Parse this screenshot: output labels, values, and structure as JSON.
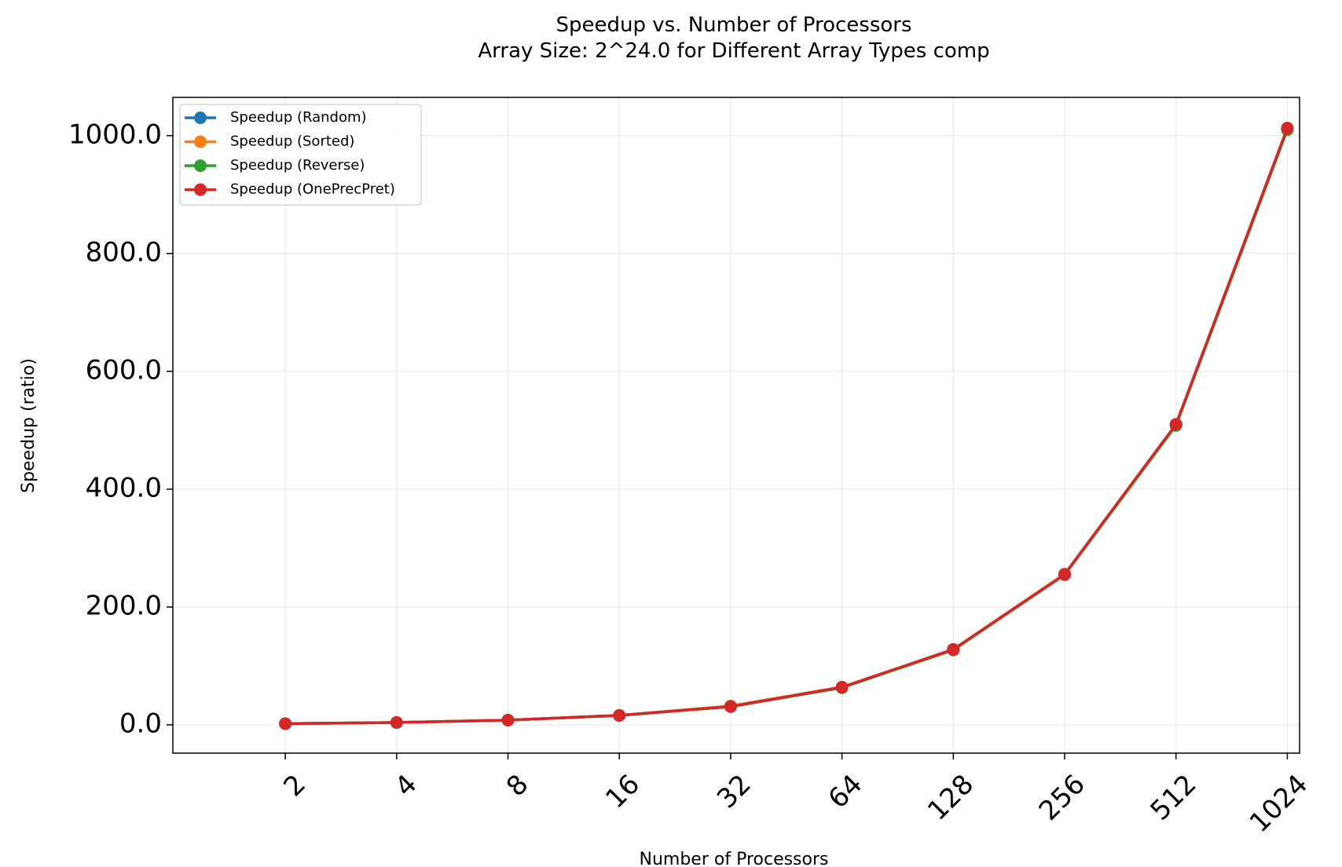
{
  "chart_data": {
    "type": "line",
    "title": "Speedup vs. Number of Processors",
    "subtitle": "Array Size: 2^24.0 for Different Array Types comp",
    "xlabel": "Number of Processors",
    "ylabel": "Speedup (ratio)",
    "x": [
      2,
      4,
      8,
      16,
      32,
      64,
      128,
      256,
      512,
      1024
    ],
    "x_tick_labels": [
      "2",
      "4",
      "8",
      "16",
      "32",
      "64",
      "128",
      "256",
      "512",
      "1024"
    ],
    "x_scale": "log2",
    "y_ticks": [
      0,
      200,
      400,
      600,
      800,
      1000
    ],
    "y_tick_labels": [
      "0.0",
      "200.0",
      "400.0",
      "600.0",
      "800.0",
      "1000.0"
    ],
    "ylim": [
      -48,
      1065
    ],
    "grid": true,
    "legend_position": "top-left",
    "series": [
      {
        "name": "Speedup (Random)",
        "color": "#1f77b4",
        "values": [
          2,
          4,
          8,
          16,
          32,
          64,
          128,
          256,
          510,
          1012
        ]
      },
      {
        "name": "Speedup (Sorted)",
        "color": "#ff7f0e",
        "values": [
          2,
          4,
          8,
          16,
          32,
          64,
          128,
          256,
          510,
          1012
        ]
      },
      {
        "name": "Speedup (Reverse)",
        "color": "#2ca02c",
        "values": [
          2,
          4,
          8,
          16,
          31,
          63,
          127,
          255,
          508,
          1010
        ]
      },
      {
        "name": "Speedup (OnePrecPret)",
        "color": "#d62728",
        "values": [
          2,
          4,
          8,
          16,
          31,
          64,
          128,
          255,
          510,
          1013
        ]
      }
    ]
  }
}
